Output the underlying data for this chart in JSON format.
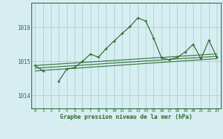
{
  "x": [
    0,
    1,
    2,
    3,
    4,
    5,
    6,
    7,
    8,
    9,
    10,
    11,
    12,
    13,
    14,
    15,
    16,
    17,
    18,
    19,
    20,
    21,
    22,
    23
  ],
  "y_main": [
    1014.88,
    1014.72,
    null,
    1014.42,
    1014.78,
    1014.82,
    1015.0,
    1015.22,
    1015.12,
    1015.38,
    1015.6,
    1015.82,
    1016.02,
    1016.28,
    1016.18,
    1015.68,
    1015.1,
    1015.05,
    1015.12,
    1015.28,
    1015.5,
    1015.08,
    1015.62,
    1015.12
  ],
  "trend_line1": [
    [
      0,
      1014.72
    ],
    [
      23,
      1015.08
    ]
  ],
  "trend_line2": [
    [
      0,
      1014.8
    ],
    [
      23,
      1015.15
    ]
  ],
  "trend_line3": [
    [
      0,
      1014.88
    ],
    [
      23,
      1015.22
    ]
  ],
  "background_color": "#d6eef2",
  "grid_color": "#a8cece",
  "line_color": "#2d6a2d",
  "ylabel_values": [
    1014,
    1015,
    1016
  ],
  "xlabel_values": [
    0,
    1,
    2,
    3,
    4,
    5,
    6,
    7,
    8,
    9,
    10,
    11,
    12,
    13,
    14,
    15,
    16,
    17,
    18,
    19,
    20,
    21,
    22,
    23
  ],
  "xlabel_label": "Graphe pression niveau de la mer (hPa)",
  "ylim": [
    1013.62,
    1016.72
  ],
  "xlim": [
    -0.5,
    23.5
  ]
}
